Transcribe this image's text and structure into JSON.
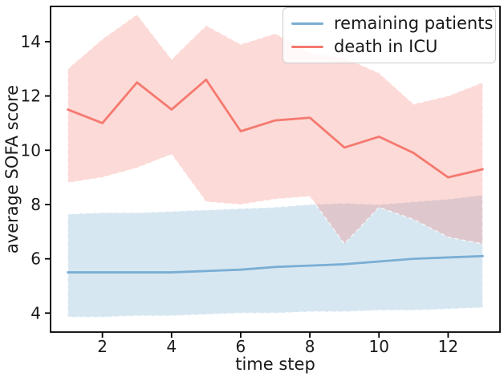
{
  "page": {
    "background": "#ffffff"
  },
  "chart_data": {
    "type": "line",
    "title": "",
    "xlabel": "time step",
    "ylabel": "average SOFA score",
    "grid": false,
    "legend_position": "upper right",
    "x": [
      1,
      2,
      3,
      4,
      5,
      6,
      7,
      8,
      9,
      10,
      11,
      12,
      13
    ],
    "xticks": [
      2,
      4,
      6,
      8,
      10,
      12
    ],
    "yticks": [
      4,
      6,
      8,
      10,
      12,
      14
    ],
    "xlim": [
      0.5,
      13.5
    ],
    "ylim": [
      3.3,
      15.3
    ],
    "axis_color": "#000000",
    "text_color": "#1a1a1a",
    "series": [
      {
        "id": "remaining-patients",
        "name": "remaining patients",
        "color": "#7aaed3",
        "band_opacity": 0.3,
        "values": [
          5.5,
          5.5,
          5.5,
          5.5,
          5.55,
          5.6,
          5.7,
          5.75,
          5.8,
          5.9,
          6.0,
          6.05,
          6.1
        ],
        "ci_lower": [
          3.85,
          3.85,
          3.9,
          3.9,
          3.95,
          4.0,
          4.0,
          4.05,
          4.05,
          4.1,
          4.1,
          4.15,
          4.2
        ],
        "ci_upper": [
          7.65,
          7.7,
          7.7,
          7.75,
          7.8,
          7.85,
          7.9,
          8.0,
          8.05,
          8.0,
          8.1,
          8.2,
          8.35
        ]
      },
      {
        "id": "death-in-icu",
        "name": "death in ICU",
        "color": "#f5796f",
        "band_opacity": 0.28,
        "values": [
          11.5,
          11.0,
          12.5,
          11.5,
          12.6,
          10.7,
          11.1,
          11.2,
          10.1,
          10.5,
          9.9,
          9.0,
          9.3
        ],
        "ci_lower": [
          8.8,
          9.0,
          9.35,
          9.85,
          8.1,
          8.0,
          8.2,
          8.3,
          6.55,
          7.9,
          7.45,
          6.8,
          6.55
        ],
        "ci_upper": [
          13.0,
          14.1,
          15.0,
          13.35,
          14.6,
          13.9,
          14.3,
          13.6,
          13.4,
          12.85,
          11.7,
          12.0,
          12.5
        ]
      }
    ]
  }
}
